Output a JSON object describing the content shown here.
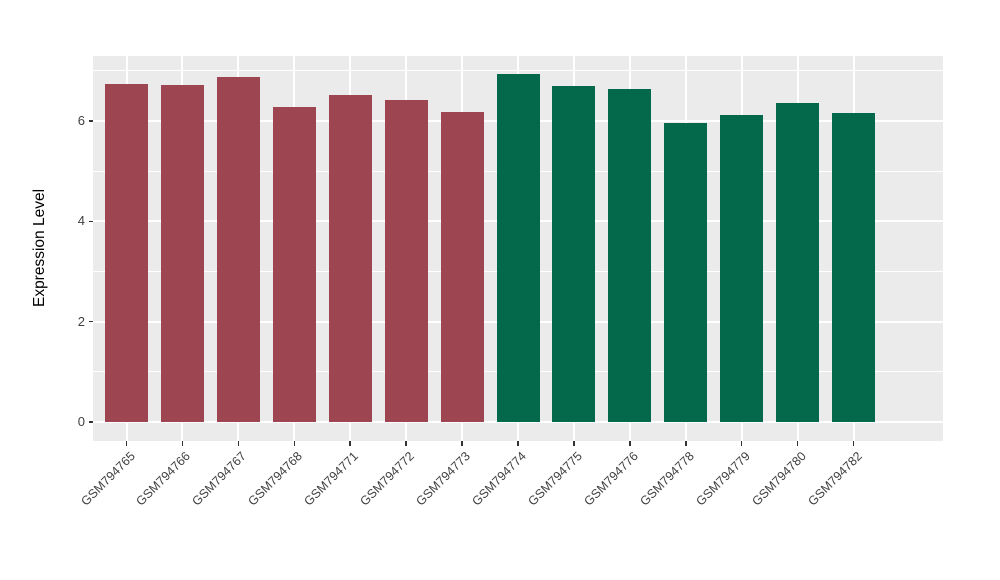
{
  "chart_data": {
    "type": "bar",
    "title": "",
    "xlabel": "",
    "ylabel": "Expression Level",
    "categories": [
      "GSM794765",
      "GSM794766",
      "GSM794767",
      "GSM794768",
      "GSM794771",
      "GSM794772",
      "GSM794773",
      "GSM794774",
      "GSM794775",
      "GSM794776",
      "GSM794778",
      "GSM794779",
      "GSM794780",
      "GSM794782"
    ],
    "values": [
      6.74,
      6.71,
      6.88,
      6.28,
      6.52,
      6.42,
      6.18,
      6.94,
      6.7,
      6.63,
      5.95,
      6.12,
      6.35,
      6.15
    ],
    "bar_colors": [
      "#9E4552",
      "#9E4552",
      "#9E4552",
      "#9E4552",
      "#9E4552",
      "#9E4552",
      "#9E4552",
      "#04694B",
      "#04694B",
      "#04694B",
      "#04694B",
      "#04694B",
      "#04694B",
      "#04694B"
    ],
    "y_major_ticks": [
      0,
      2,
      4,
      6
    ],
    "y_minor_gridlines": [
      1,
      3,
      5,
      7
    ],
    "ylim": [
      -0.37,
      7.32
    ],
    "legend": "none",
    "grid": true,
    "style": {
      "panel_background": "#EBEBEB",
      "grid_color": "#FFFFFF",
      "axis_text_color": "#404040",
      "axis_title_color": "#000000",
      "tick_color": "#333333",
      "group1_color": "#9E4552",
      "group2_color": "#04694B"
    }
  }
}
